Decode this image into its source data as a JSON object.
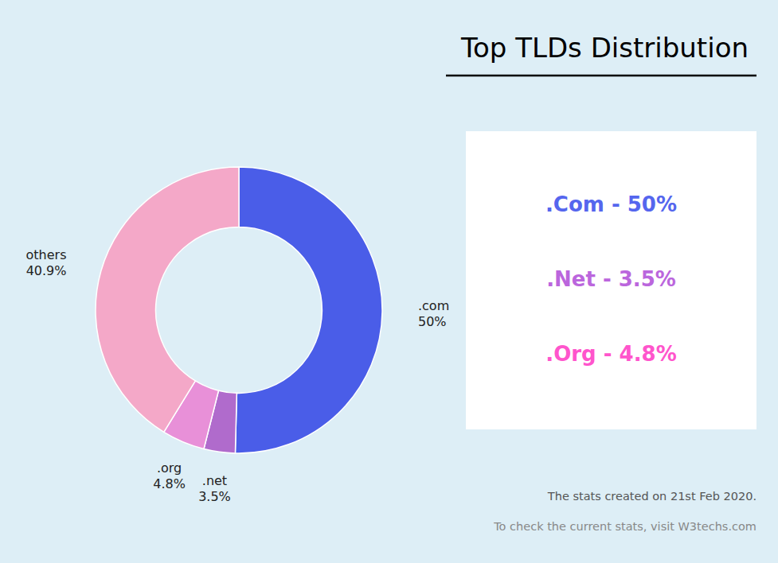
{
  "chart_data": {
    "type": "pie",
    "title": "Top TLDs Distribution",
    "categories": [
      ".com",
      ".net",
      ".org",
      "others"
    ],
    "values": [
      50.0,
      3.5,
      4.8,
      40.9
    ],
    "value_labels": [
      "50%",
      "3.5%",
      "4.8%",
      "40.9%"
    ],
    "colors": [
      "#4a5de8",
      "#b06bcc",
      "#e890d8",
      "#f4a8c8"
    ],
    "data_labels": true,
    "annotations": [
      {
        "text": ".Com - 50%",
        "color": "#5566ee"
      },
      {
        "text": ".Net - 3.5%",
        "color": "#bb66dd"
      },
      {
        "text": ".Org - 4.8%",
        "color": "#ff55cc"
      },
      {
        "text": "The stats created on 21st Feb 2020.",
        "color": "#555555"
      },
      {
        "text": "To check the current stats, visit W3techs.com",
        "color": "#888888"
      }
    ]
  }
}
